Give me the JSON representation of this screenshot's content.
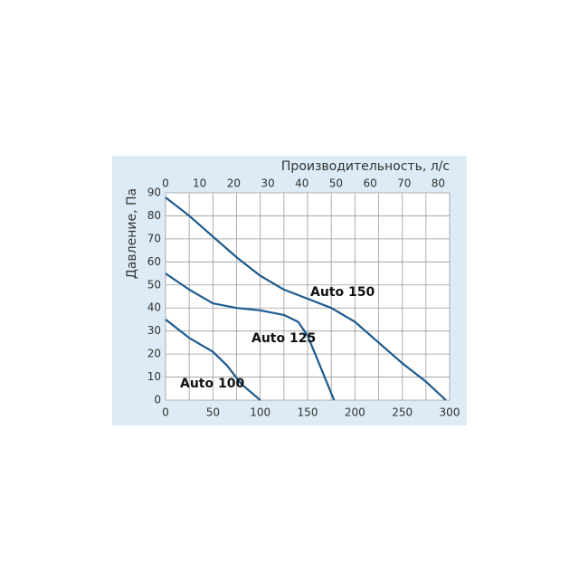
{
  "chart_data": {
    "type": "line",
    "ylabel": "Давление, Па",
    "x2label": "Производительность, л/с",
    "xlim": [
      0,
      300
    ],
    "xticks": [
      0,
      50,
      100,
      150,
      200,
      250,
      300
    ],
    "xgrid": [
      0,
      25,
      50,
      75,
      100,
      125,
      150,
      175,
      200,
      225,
      250,
      275,
      300
    ],
    "x2lim": [
      0,
      83.33
    ],
    "x2ticks": [
      0,
      10,
      20,
      30,
      40,
      50,
      60,
      70,
      80
    ],
    "ylim": [
      0,
      90
    ],
    "yticks": [
      0,
      10,
      20,
      30,
      40,
      50,
      60,
      70,
      80,
      90
    ],
    "grid": true,
    "series": [
      {
        "name": "Auto 150",
        "color": "#1d5a8e",
        "x": [
          0,
          25,
          50,
          75,
          100,
          125,
          150,
          175,
          200,
          225,
          250,
          275,
          296
        ],
        "values": [
          88,
          80,
          71,
          62,
          54,
          48,
          44,
          40,
          34,
          25,
          16,
          8,
          0
        ]
      },
      {
        "name": "Auto 125",
        "color": "#1d5a8e",
        "x": [
          0,
          25,
          50,
          75,
          100,
          125,
          140,
          150,
          160,
          170,
          178
        ],
        "values": [
          55,
          48,
          42,
          40,
          39,
          37,
          34,
          28,
          18,
          8,
          0
        ]
      },
      {
        "name": "Auto 100",
        "color": "#1d5a8e",
        "x": [
          0,
          25,
          50,
          65,
          80,
          100
        ],
        "values": [
          35,
          27,
          21,
          15,
          7,
          0
        ]
      }
    ]
  }
}
